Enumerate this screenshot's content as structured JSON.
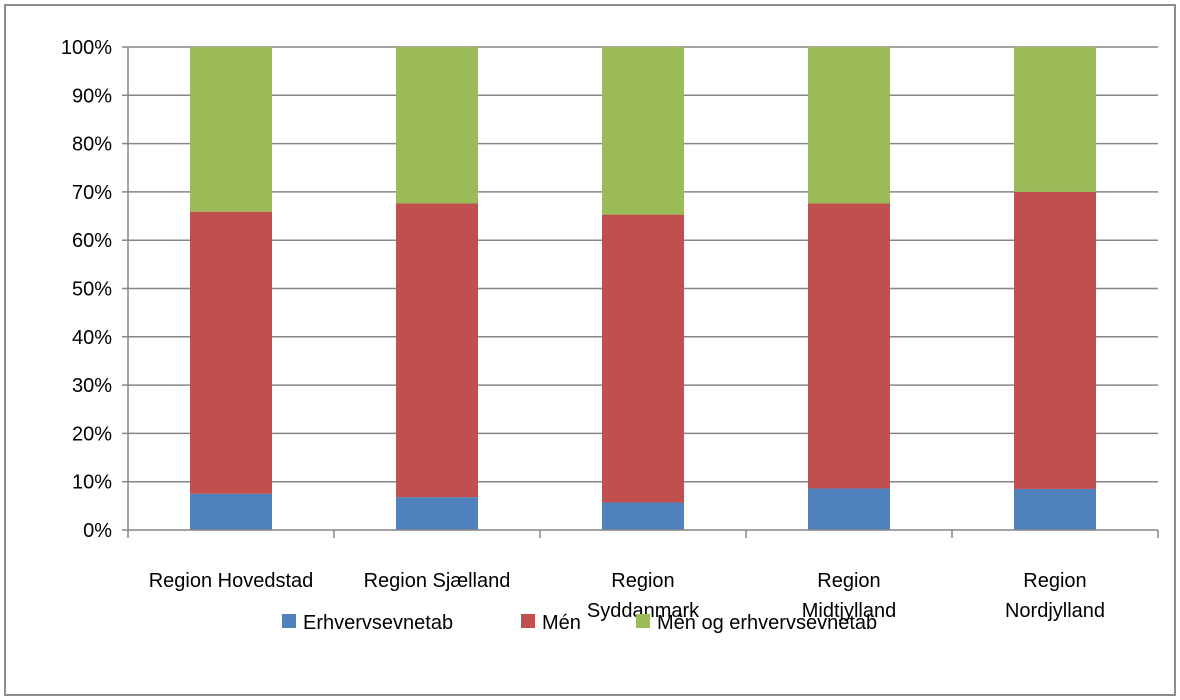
{
  "chart_data": {
    "type": "bar",
    "stacked": true,
    "percent": true,
    "categories": [
      [
        "Region Hovedstad"
      ],
      [
        "Region Sjælland"
      ],
      [
        "Region",
        "Syddanmark"
      ],
      [
        "Region",
        "Midtjylland"
      ],
      [
        "Region",
        "Nordjylland"
      ]
    ],
    "series": [
      {
        "name": "Erhvervsevnetab",
        "color": "#4f81bd",
        "values": [
          7.5,
          6.8,
          5.7,
          8.6,
          8.5
        ]
      },
      {
        "name": "Mén",
        "color": "#c0504d",
        "values": [
          58.4,
          60.8,
          59.6,
          59.0,
          61.5
        ]
      },
      {
        "name": "Mén og erhvervsevnetab",
        "color": "#9bbb59",
        "values": [
          34.1,
          32.4,
          34.7,
          32.4,
          30.0
        ]
      }
    ],
    "y_ticks": [
      "0%",
      "10%",
      "20%",
      "30%",
      "40%",
      "50%",
      "60%",
      "70%",
      "80%",
      "90%",
      "100%"
    ],
    "ylim": [
      0,
      100
    ],
    "grid": true,
    "legend_position": "bottom"
  }
}
